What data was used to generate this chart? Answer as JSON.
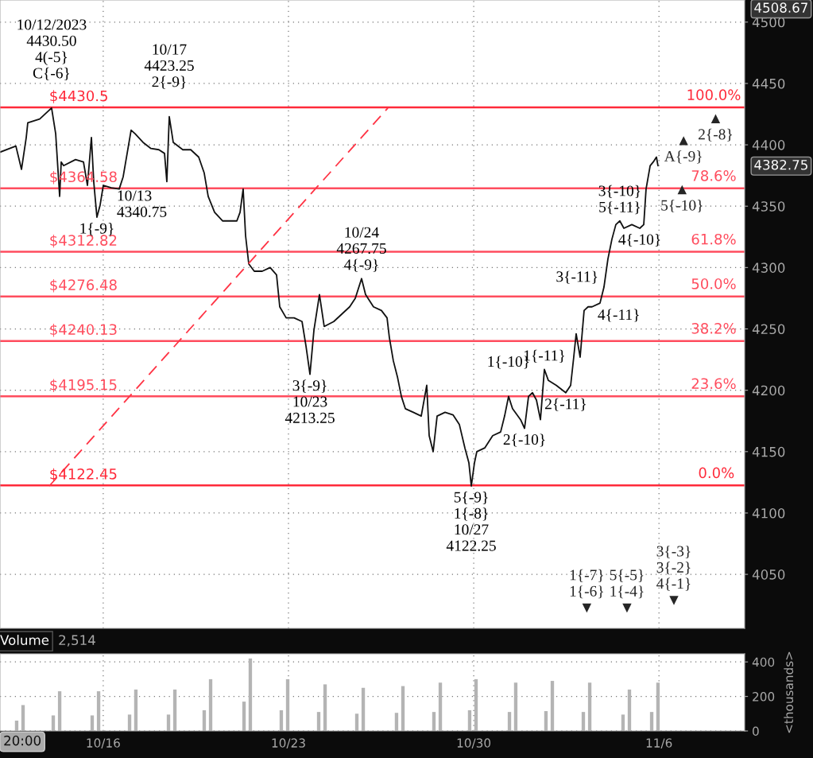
{
  "chart_data": [
    {
      "type": "line",
      "xlim": [
        "2023-10-12T02:24",
        "2023-11-09T05:42"
      ],
      "ylim": [
        4006,
        4518
      ],
      "xticks": [
        {
          "value": "2023-10-16",
          "label": null
        },
        {
          "value": "2023-10-23",
          "label": null
        },
        {
          "value": "2023-10-30",
          "label": null
        },
        {
          "value": "2023-11-06",
          "label": null
        }
      ],
      "yticks": [
        4050,
        4100,
        4150,
        4200,
        4250,
        4300,
        4350,
        4400,
        4450,
        4500
      ],
      "tick_labels": "y",
      "grid": true,
      "series": [
        {
          "type": "line",
          "color": "#111111",
          "x": [
            "2023-10-12T02:24",
            "2023-10-12T16:48",
            "2023-10-12T21:54",
            "2023-10-13T02:12",
            "2023-10-13T03:36",
            "2023-10-13T14:24",
            "2023-10-13T21:36",
            "2023-10-14T01:12",
            "2023-10-14T04:54",
            "2023-10-14T08:30",
            "2023-10-14T09:54",
            "2023-10-14T12:06",
            "2023-10-14T22:54",
            "2023-10-15T06:06",
            "2023-10-15T09:42",
            "2023-10-15T13:18",
            "2023-10-15T15:24",
            "2023-10-15T18:18",
            "2023-10-15T21:12",
            "2023-10-16T00:06",
            "2023-10-16T07:18",
            "2023-10-16T14:30",
            "2023-10-16T18:06",
            "2023-10-16T21:42",
            "2023-10-17T01:18",
            "2023-10-17T04:54",
            "2023-10-17T12:06",
            "2023-10-17T19:18",
            "2023-10-18T02:30",
            "2023-10-18T07:36",
            "2023-10-18T09:42",
            "2023-10-18T11:54",
            "2023-10-18T15:30",
            "2023-10-19T00:12",
            "2023-10-19T07:24",
            "2023-10-19T14:36",
            "2023-10-19T19:36",
            "2023-10-19T23:12",
            "2023-10-20T05:00",
            "2023-10-20T12:12",
            "2023-10-20T19:24",
            "2023-10-21T01:12",
            "2023-10-21T04:06",
            "2023-10-21T06:54",
            "2023-10-21T09:06",
            "2023-10-21T12:00",
            "2023-10-21T17:00",
            "2023-10-22T00:12",
            "2023-10-22T07:24",
            "2023-10-22T13:12",
            "2023-10-22T16:06",
            "2023-10-22T21:54",
            "2023-10-23T05:06",
            "2023-10-23T12:18",
            "2023-10-23T15:54",
            "2023-10-23T19:30",
            "2023-10-23T23:06",
            "2023-10-24T04:06",
            "2023-10-24T08:24",
            "2023-10-24T17:06",
            "2023-10-25T00:18",
            "2023-10-25T07:30",
            "2023-10-25T12:36",
            "2023-10-25T18:18",
            "2023-10-25T21:54",
            "2023-10-26T05:06",
            "2023-10-26T12:18",
            "2023-10-26T17:24",
            "2023-10-26T19:30",
            "2023-10-26T23:06",
            "2023-10-27T02:48",
            "2023-10-27T06:24",
            "2023-10-27T10:00",
            "2023-10-27T17:12",
            "2023-10-28T00:24",
            "2023-10-28T05:24",
            "2023-10-28T07:36",
            "2023-10-28T11:12",
            "2023-10-28T14:48",
            "2023-10-28T22:00",
            "2023-10-29T05:12",
            "2023-10-29T11:00",
            "2023-10-29T16:00",
            "2023-10-29T19:36",
            "2023-10-29T21:48",
            "2023-10-30T00:42",
            "2023-10-30T02:48",
            "2023-10-30T10:00",
            "2023-10-30T17:12",
            "2023-10-31T00:24",
            "2023-10-31T04:00",
            "2023-10-31T07:36",
            "2023-10-31T11:12",
            "2023-10-31T18:30",
            "2023-10-31T22:06",
            "2023-11-01T01:42",
            "2023-11-01T05:18",
            "2023-11-01T08:54",
            "2023-11-01T12:30",
            "2023-11-01T16:06",
            "2023-11-01T19:42",
            "2023-11-02T02:54",
            "2023-11-02T11:30",
            "2023-11-02T15:54",
            "2023-11-02T18:42",
            "2023-11-02T20:54",
            "2023-11-03T00:30",
            "2023-11-03T04:06",
            "2023-11-03T07:42",
            "2023-11-03T11:18",
            "2023-11-03T18:30",
            "2023-11-03T22:06",
            "2023-11-04T01:42",
            "2023-11-04T05:18",
            "2023-11-04T08:54",
            "2023-11-04T12:30",
            "2023-11-04T16:12",
            "2023-11-04T23:24",
            "2023-11-05T06:36",
            "2023-11-05T10:12",
            "2023-11-05T12:18",
            "2023-11-05T16:00",
            "2023-11-05T18:48",
            "2023-11-05T21:42",
            "2023-11-05T23:06"
          ],
          "values": [
            4394,
            4399,
            4380,
            4406,
            4418,
            4421,
            4427,
            4430,
            4409,
            4358,
            4386,
            4383,
            4388,
            4386,
            4367,
            4406,
            4370,
            4341,
            4351,
            4367,
            4365,
            4364,
            4374,
            4393,
            4412,
            4409,
            4402,
            4397,
            4396,
            4393,
            4370,
            4423,
            4402,
            4396,
            4396,
            4390,
            4377,
            4358,
            4345,
            4338,
            4338,
            4338,
            4345,
            4364,
            4326,
            4303,
            4297,
            4297,
            4300,
            4294,
            4268,
            4259,
            4259,
            4256,
            4236,
            4213,
            4249,
            4278,
            4252,
            4256,
            4262,
            4268,
            4275,
            4291,
            4278,
            4268,
            4265,
            4259,
            4243,
            4224,
            4211,
            4195,
            4185,
            4182,
            4179,
            4204,
            4163,
            4150,
            4179,
            4182,
            4180,
            4172,
            4153,
            4141,
            4122,
            4141,
            4150,
            4153,
            4163,
            4166,
            4179,
            4195,
            4185,
            4176,
            4169,
            4195,
            4198,
            4192,
            4176,
            4217,
            4208,
            4204,
            4198,
            4204,
            4227,
            4246,
            4227,
            4265,
            4268,
            4268,
            4271,
            4284,
            4307,
            4323,
            4335,
            4338,
            4332,
            4335,
            4332,
            4335,
            4364,
            4383,
            4386,
            4390,
            4383
          ]
        },
        {
          "type": "line",
          "color": "#ff3344",
          "line_style": "dashed",
          "x": [
            "2023-10-13T23:06",
            "2023-10-26T18:06"
          ],
          "values": [
            4122,
            4430
          ]
        }
      ],
      "ref_lines": [
        {
          "axis": "y",
          "value": 4430.5,
          "label": "$4430.5",
          "color": "#ff2a3a"
        },
        {
          "axis": "y",
          "value": 4364.58,
          "label": "$4364.58",
          "color": "#ff4d5e"
        },
        {
          "axis": "y",
          "value": 4312.82,
          "label": "$4312.82",
          "color": "#ff4d5e"
        },
        {
          "axis": "y",
          "value": 4276.48,
          "label": "$4276.48",
          "color": "#ff4d5e"
        },
        {
          "axis": "y",
          "value": 4240.13,
          "label": "$4240.13",
          "color": "#ff4d5e"
        },
        {
          "axis": "y",
          "value": 4195.15,
          "label": "$4195.15",
          "color": "#ff4d5e"
        },
        {
          "axis": "y",
          "value": 4122.45,
          "label": "$4122.45",
          "color": "#ff2a3a"
        }
      ],
      "annotations": [
        {
          "text": "10/12/2023\n4430.50\n4(-5}\nC{-6}",
          "x": "2023-10-14T01:12",
          "y": 4430
        },
        {
          "text": "10/17\n4423.25\n2{-9}",
          "x": "2023-10-18T11:54",
          "y": 4423
        },
        {
          "text": "1{-9}",
          "x": "2023-10-15T18:18",
          "y": 4341
        },
        {
          "text": "10/13\n4340.75",
          "x": "2023-10-16T07:18",
          "y": 4365
        },
        {
          "text": "10/24\n4267.75\n4{-9}",
          "x": "2023-10-25T18:18",
          "y": 4291
        },
        {
          "text": "3{-9}\n10/23\n4213.25",
          "x": "2023-10-23T19:30",
          "y": 4213
        },
        {
          "text": "5{-9}\n1{-8}\n10/27\n4122.25",
          "x": "2023-10-29T21:48",
          "y": 4122
        },
        {
          "text": "1{-10}",
          "x": "2023-10-31T07:36",
          "y": 4195
        },
        {
          "text": "2{-10}",
          "x": "2023-10-31T22:06",
          "y": 4169
        },
        {
          "text": "1{-11}",
          "x": "2023-11-01T16:06",
          "y": 4217
        },
        {
          "text": "2{-11}",
          "x": "2023-11-02T11:30",
          "y": 4198
        },
        {
          "text": "3{-11}",
          "x": "2023-11-03T22:06",
          "y": 4284
        },
        {
          "text": "4{-11}",
          "x": "2023-11-03T11:18",
          "y": 4268
        },
        {
          "text": "3{-10}\n5{-11}",
          "x": "2023-11-04T12:30",
          "y": 4338
        },
        {
          "text": "4{-10}",
          "x": "2023-11-05T06:36",
          "y": 4332
        },
        {
          "text": "100.0%",
          "x": "2023-11-08T01:36",
          "y": 4430.5
        },
        {
          "text": "78.6%",
          "x": "2023-11-08T01:36",
          "y": 4364.58
        },
        {
          "text": "61.8%",
          "x": "2023-11-08T01:36",
          "y": 4312.82
        },
        {
          "text": "50.0%",
          "x": "2023-11-08T01:36",
          "y": 4276.48
        },
        {
          "text": "38.2%",
          "x": "2023-11-08T01:36",
          "y": 4240.13
        },
        {
          "text": "23.6%",
          "x": "2023-11-08T01:36",
          "y": 4195.15
        },
        {
          "text": "0.0%",
          "x": "2023-11-08T04:00",
          "y": 4122.45
        },
        "▲\nA{-9}",
        "▲\n5{-10}",
        "▲\n2{-8}",
        "1{-7}\n1{-6}\n▼",
        "5{-5}\n1{-4}\n▼",
        "3{-3}\n3{-2}\n4{-1}\n▼",
        "4508.67",
        "4382.75"
      ]
    },
    {
      "type": "bar",
      "title": "Volume",
      "subtitle": "2,514",
      "ylabel": "<thousands>",
      "color": "#b4b4b4",
      "grid": true,
      "xlim": [
        "2023-10-12T02:24",
        "2023-11-09T05:42"
      ],
      "ylim": [
        0,
        447
      ],
      "yticks": [
        0,
        200,
        400
      ],
      "xticks": [
        {
          "value": "2023-10-16",
          "label": "10/16"
        },
        {
          "value": "2023-10-23",
          "label": "10/23"
        },
        {
          "value": "2023-10-30",
          "label": "10/30"
        },
        {
          "value": "2023-11-06",
          "label": "11/6"
        }
      ],
      "x": [
        "2023-10-12T17:30",
        "2023-10-12T23:18",
        "2023-10-14T02:42",
        "2023-10-14T08:30",
        "2023-10-15T14:00",
        "2023-10-15T19:48",
        "2023-10-16T23:54",
        "2023-10-17T05:36",
        "2023-10-18T11:12",
        "2023-10-18T17:00",
        "2023-10-19T19:36",
        "2023-10-20T01:24",
        "2023-10-21T07:42",
        "2023-10-21T13:24",
        "2023-10-22T17:30",
        "2023-10-22T23:18",
        "2023-10-24T03:24",
        "2023-10-24T09:12",
        "2023-10-25T14:00",
        "2023-10-25T19:48",
        "2023-10-27T02:00",
        "2023-10-27T07:48",
        "2023-10-28T11:54",
        "2023-10-28T17:42",
        "2023-10-29T20:18",
        "2023-10-30T02:06",
        "2023-10-31T08:24",
        "2023-10-31T14:06",
        "2023-11-01T17:30",
        "2023-11-01T23:18",
        "2023-11-03T03:24",
        "2023-11-03T09:12",
        "2023-11-04T15:24",
        "2023-11-04T21:12",
        "2023-11-05T17:24",
        "2023-11-05T23:06"
      ],
      "values": [
        60,
        150,
        90,
        230,
        90,
        230,
        95,
        240,
        95,
        240,
        120,
        300,
        170,
        420,
        120,
        300,
        110,
        270,
        100,
        250,
        105,
        260,
        110,
        280,
        120,
        300,
        110,
        280,
        115,
        290,
        110,
        280,
        95,
        240,
        110,
        280
      ],
      "annotations": [
        "20:00"
      ]
    }
  ]
}
